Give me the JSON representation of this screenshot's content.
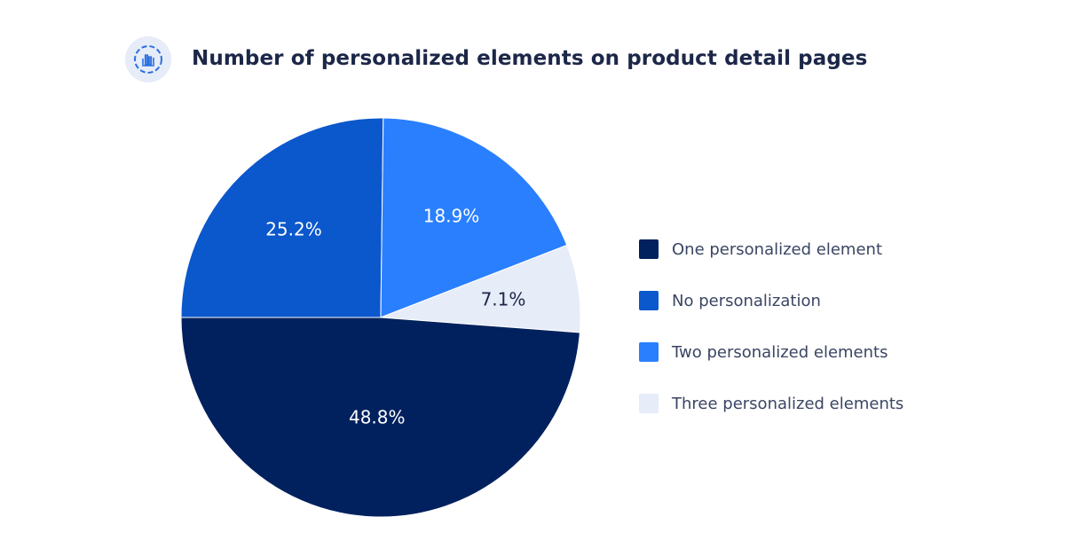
{
  "header": {
    "title": "Number of personalized elements on product detail pages",
    "icon": "bar-chart-icon"
  },
  "chart_data": {
    "type": "pie",
    "title": "Number of personalized elements on product detail pages",
    "start_angle": "9 o'clock, clockwise",
    "legend_position": "right",
    "slices": [
      {
        "label": "No personalization",
        "value": 25.2,
        "display": "25.2%",
        "color": "#0b57cc"
      },
      {
        "label": "Two personalized elements",
        "value": 18.9,
        "display": "18.9%",
        "color": "#2a7fff"
      },
      {
        "label": "Three personalized elements",
        "value": 7.1,
        "display": "7.1%",
        "color": "#e6ecf8"
      },
      {
        "label": "One personalized element",
        "value": 48.8,
        "display": "48.8%",
        "color": "#00215e"
      }
    ],
    "legend": [
      {
        "label": "One personalized element",
        "color": "#00215e"
      },
      {
        "label": "No personalization",
        "color": "#0b57cc"
      },
      {
        "label": "Two personalized elements",
        "color": "#2a7fff"
      },
      {
        "label": "Three personalized elements",
        "color": "#e6ecf8"
      }
    ]
  }
}
